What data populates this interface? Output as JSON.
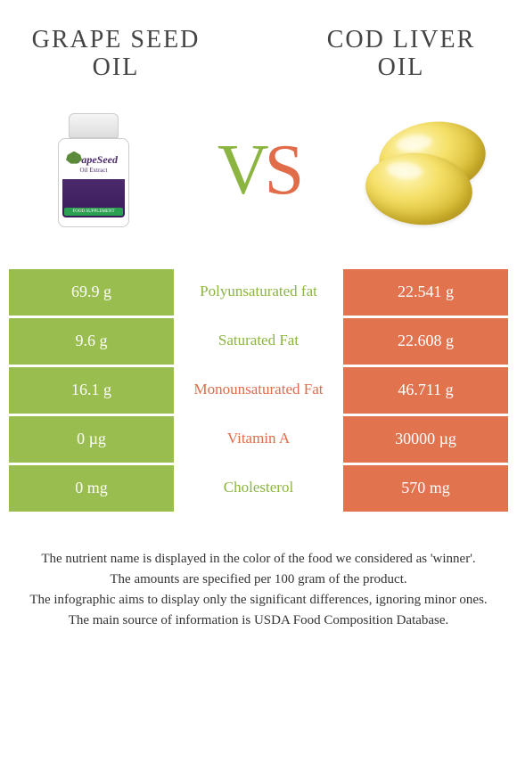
{
  "colors": {
    "left": "#99bd4e",
    "right": "#e2734f",
    "left_text": "#8bb540",
    "right_text": "#e06c4a",
    "background": "#ffffff",
    "row_gap": 3
  },
  "left_product": {
    "title": "GRAPE SEED OIL",
    "label_brand": "GrapeSeed",
    "label_sub": "Oil Extract",
    "label_tag": "FOOD SUPPLEMENT"
  },
  "right_product": {
    "title": "COD LIVER OIL"
  },
  "vs": {
    "v": "V",
    "s": "S"
  },
  "rows": [
    {
      "left": "69.9 g",
      "label": "Polyunsaturated fat",
      "right": "22.541 g",
      "winner": "left"
    },
    {
      "left": "9.6 g",
      "label": "Saturated Fat",
      "right": "22.608 g",
      "winner": "left"
    },
    {
      "left": "16.1 g",
      "label": "Monounsaturated Fat",
      "right": "46.711 g",
      "winner": "right"
    },
    {
      "left": "0 µg",
      "label": "Vitamin A",
      "right": "30000 µg",
      "winner": "right"
    },
    {
      "left": "0 mg",
      "label": "Cholesterol",
      "right": "570 mg",
      "winner": "left"
    }
  ],
  "footer": [
    "The nutrient name is displayed in the color of the food we considered as 'winner'.",
    "The amounts are specified per 100 gram of the product.",
    "The infographic aims to display only the significant differences, ignoring minor ones.",
    "The main source of information is USDA Food Composition Database."
  ]
}
